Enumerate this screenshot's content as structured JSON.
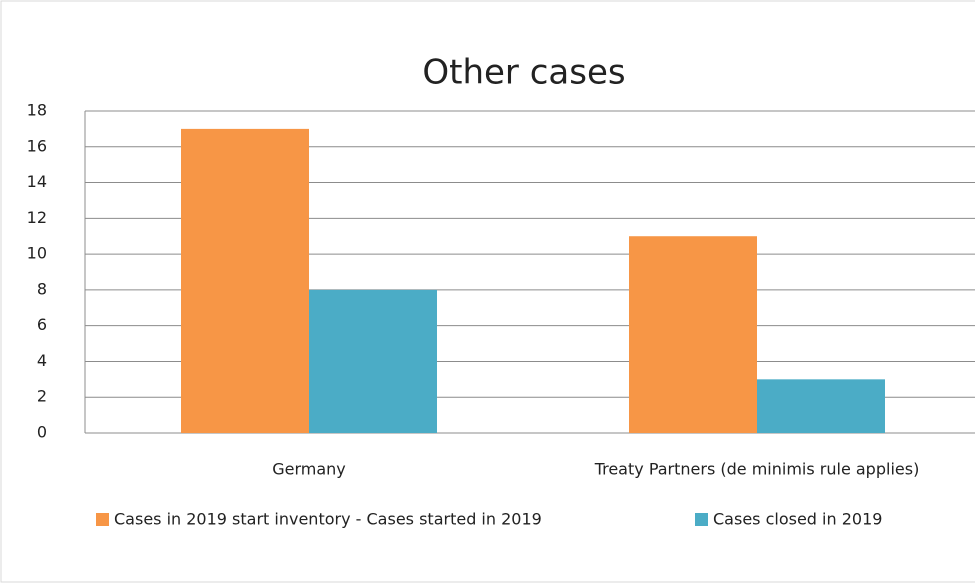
{
  "chart_data": {
    "type": "bar",
    "title": "Other cases",
    "categories": [
      "Germany",
      "Treaty Partners (de minimis rule applies)"
    ],
    "series": [
      {
        "name": "Cases in 2019 start inventory - Cases started in 2019",
        "color": "#f79646",
        "values": [
          17,
          11
        ]
      },
      {
        "name": "Cases closed in 2019",
        "color": "#4bacc6",
        "values": [
          8,
          3
        ]
      }
    ],
    "ylim": [
      0,
      18
    ],
    "yticks": [
      0,
      2,
      4,
      6,
      8,
      10,
      12,
      14,
      16,
      18
    ],
    "grid": true,
    "legend": "bottom"
  }
}
